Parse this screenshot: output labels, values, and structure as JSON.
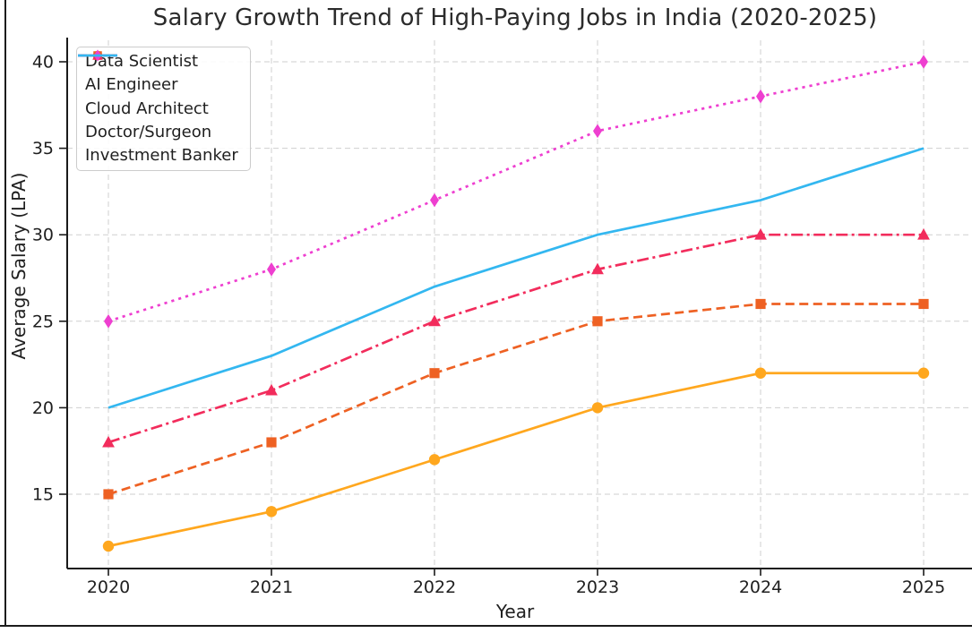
{
  "chart_data": {
    "type": "line",
    "title": "Salary Growth Trend of High-Paying Jobs in India (2020-2025)",
    "xlabel": "Year",
    "ylabel": "Average Salary (LPA)",
    "x": [
      2020,
      2021,
      2022,
      2023,
      2024,
      2025
    ],
    "yticks": [
      15,
      20,
      25,
      30,
      35,
      40
    ],
    "xlim": [
      2019.75,
      2025.3
    ],
    "ylim": [
      10.6,
      41.4
    ],
    "grid": true,
    "grid_style": "dashed",
    "grid_color": "#cfcfcf",
    "legend_position": "upper left",
    "series": [
      {
        "name": "Data Scientist",
        "values": [
          12,
          14,
          17,
          20,
          22,
          22
        ],
        "color": "#FFA71E",
        "line_style": "solid",
        "marker": "circle"
      },
      {
        "name": "AI Engineer",
        "values": [
          15,
          18,
          22,
          25,
          26,
          26
        ],
        "color": "#EE6123",
        "line_style": "dashed",
        "marker": "square"
      },
      {
        "name": "Cloud Architect",
        "values": [
          18,
          21,
          25,
          28,
          30,
          30
        ],
        "color": "#F22C5C",
        "line_style": "dashdot",
        "marker": "triangle"
      },
      {
        "name": "Doctor/Surgeon",
        "values": [
          25,
          28,
          32,
          36,
          38,
          40
        ],
        "color": "#EE3FD0",
        "line_style": "dotted",
        "marker": "diamond"
      },
      {
        "name": "Investment Banker",
        "values": [
          20,
          23,
          27,
          30,
          32,
          35
        ],
        "color": "#33B7F0",
        "line_style": "solid",
        "marker": "none"
      }
    ]
  }
}
